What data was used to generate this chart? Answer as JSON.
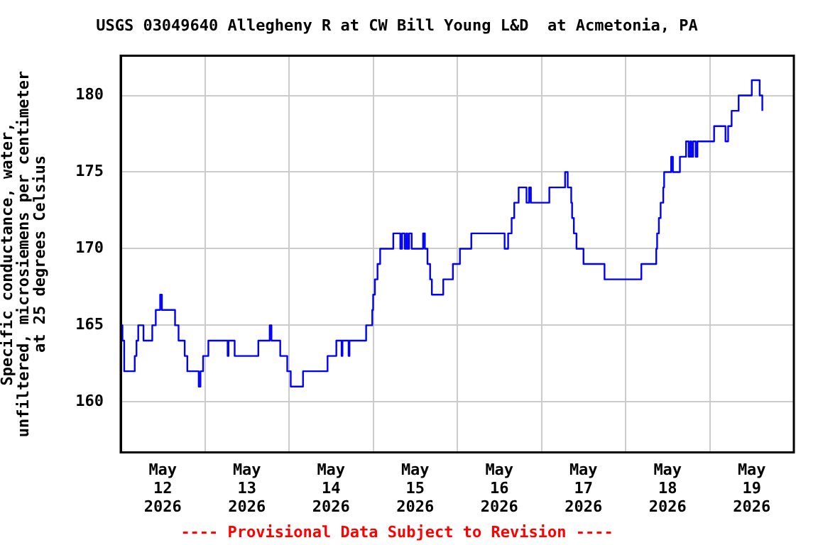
{
  "chart_data": {
    "type": "step",
    "title": "USGS 03049640 Allegheny R at CW Bill Young L&D  at Acmetonia, PA",
    "ylabel": "Specific conductance, water,\nunfiltered, microsiemens per centimeter\nat 25 degrees Celsius",
    "annotations": [
      "---- Provisional Data Subject to Revision ----"
    ],
    "x": [
      "2026-05-12T00:00",
      "2026-05-12T00:30",
      "2026-05-12T01:00",
      "2026-05-12T04:00",
      "2026-05-12T04:30",
      "2026-05-12T05:00",
      "2026-05-12T06:30",
      "2026-05-12T09:00",
      "2026-05-12T10:00",
      "2026-05-12T11:15",
      "2026-05-12T11:45",
      "2026-05-12T15:30",
      "2026-05-12T16:30",
      "2026-05-12T18:15",
      "2026-05-12T19:00",
      "2026-05-12T22:15",
      "2026-05-12T22:45",
      "2026-05-12T23:30",
      "2026-05-13T01:00",
      "2026-05-13T06:30",
      "2026-05-13T06:45",
      "2026-05-13T08:30",
      "2026-05-13T15:15",
      "2026-05-13T18:30",
      "2026-05-13T19:00",
      "2026-05-13T21:30",
      "2026-05-13T23:30",
      "2026-05-14T00:30",
      "2026-05-14T04:00",
      "2026-05-14T11:00",
      "2026-05-14T13:30",
      "2026-05-14T15:00",
      "2026-05-14T15:15",
      "2026-05-14T17:00",
      "2026-05-14T17:15",
      "2026-05-14T22:00",
      "2026-05-14T23:45",
      "2026-05-15T00:00",
      "2026-05-15T00:30",
      "2026-05-15T01:15",
      "2026-05-15T02:00",
      "2026-05-15T05:45",
      "2026-05-15T07:45",
      "2026-05-15T08:15",
      "2026-05-15T09:00",
      "2026-05-15T09:30",
      "2026-05-15T09:45",
      "2026-05-15T10:15",
      "2026-05-15T11:00",
      "2026-05-15T14:15",
      "2026-05-15T14:45",
      "2026-05-15T15:30",
      "2026-05-15T16:15",
      "2026-05-15T16:45",
      "2026-05-15T20:00",
      "2026-05-15T22:45",
      "2026-05-16T00:45",
      "2026-05-16T04:00",
      "2026-05-16T13:30",
      "2026-05-16T14:30",
      "2026-05-16T15:30",
      "2026-05-16T16:15",
      "2026-05-16T17:30",
      "2026-05-16T19:45",
      "2026-05-16T20:30",
      "2026-05-16T21:00",
      "2026-05-17T02:15",
      "2026-05-17T06:45",
      "2026-05-17T07:30",
      "2026-05-17T08:30",
      "2026-05-17T08:45",
      "2026-05-17T09:15",
      "2026-05-17T10:00",
      "2026-05-17T12:00",
      "2026-05-17T18:00",
      "2026-05-18T04:30",
      "2026-05-18T08:45",
      "2026-05-18T09:00",
      "2026-05-18T09:30",
      "2026-05-18T10:00",
      "2026-05-18T10:45",
      "2026-05-18T11:00",
      "2026-05-18T13:00",
      "2026-05-18T13:30",
      "2026-05-18T15:30",
      "2026-05-18T17:15",
      "2026-05-18T18:00",
      "2026-05-18T18:30",
      "2026-05-18T18:45",
      "2026-05-18T19:15",
      "2026-05-18T20:00",
      "2026-05-18T20:30",
      "2026-05-19T01:15",
      "2026-05-19T04:30",
      "2026-05-19T05:15",
      "2026-05-19T06:15",
      "2026-05-19T08:15",
      "2026-05-19T12:00",
      "2026-05-19T14:15",
      "2026-05-19T15:00"
    ],
    "series": [
      {
        "color": "#0000ff",
        "values": [
          165,
          164,
          162,
          163,
          164,
          165,
          164,
          165,
          166,
          167,
          166,
          165,
          164,
          163,
          162,
          161,
          162,
          163,
          164,
          163,
          164,
          163,
          164,
          165,
          164,
          163,
          162,
          161,
          162,
          163,
          164,
          163,
          164,
          163,
          164,
          165,
          166,
          167,
          168,
          169,
          170,
          171,
          170,
          171,
          170,
          171,
          170,
          171,
          170,
          171,
          170,
          169,
          168,
          167,
          168,
          169,
          170,
          171,
          170,
          171,
          172,
          173,
          174,
          173,
          174,
          173,
          174,
          175,
          174,
          173,
          172,
          171,
          170,
          169,
          168,
          169,
          170,
          171,
          172,
          173,
          174,
          175,
          176,
          175,
          176,
          177,
          176,
          177,
          176,
          177,
          176,
          177,
          178,
          177,
          178,
          179,
          180,
          181,
          180,
          179
        ]
      }
    ],
    "xlim": [
      "2026-05-12",
      "2026-05-20"
    ],
    "xticks": [
      {
        "value": "2026-05-12T12:00",
        "label": "May\n12\n2026"
      },
      {
        "value": "2026-05-13",
        "label": null
      },
      {
        "value": "2026-05-13T12:00",
        "label": "May\n13\n2026"
      },
      {
        "value": "2026-05-14",
        "label": null
      },
      {
        "value": "2026-05-14T12:00",
        "label": "May\n14\n2026"
      },
      {
        "value": "2026-05-15",
        "label": null
      },
      {
        "value": "2026-05-15T12:00",
        "label": "May\n15\n2026"
      },
      {
        "value": "2026-05-16",
        "label": null
      },
      {
        "value": "2026-05-16T12:00",
        "label": "May\n16\n2026"
      },
      {
        "value": "2026-05-17",
        "label": null
      },
      {
        "value": "2026-05-17T12:00",
        "label": "May\n17\n2026"
      },
      {
        "value": "2026-05-18",
        "label": null
      },
      {
        "value": "2026-05-18T12:00",
        "label": "May\n18\n2026"
      },
      {
        "value": "2026-05-19",
        "label": null
      },
      {
        "value": "2026-05-19T12:00",
        "label": "May\n19\n2026"
      }
    ],
    "ylim": [
      156.7,
      182.6
    ],
    "yticks": [
      160,
      165,
      170,
      175,
      180
    ],
    "grid": true,
    "legend": false,
    "marker": "none",
    "line_style": "solid"
  }
}
